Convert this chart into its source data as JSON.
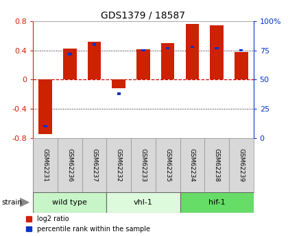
{
  "title": "GDS1379 / 18587",
  "samples": [
    "GSM62231",
    "GSM62236",
    "GSM62237",
    "GSM62232",
    "GSM62233",
    "GSM62235",
    "GSM62234",
    "GSM62238",
    "GSM62239"
  ],
  "log2_ratios": [
    -0.75,
    0.43,
    0.52,
    -0.12,
    0.42,
    0.5,
    0.76,
    0.74,
    0.38
  ],
  "percentile_ranks": [
    10,
    72,
    80,
    38,
    75,
    77,
    78,
    77,
    75
  ],
  "groups": [
    {
      "label": "wild type",
      "start": 0,
      "end": 3,
      "color": "#c8f5c8"
    },
    {
      "label": "vhl-1",
      "start": 3,
      "end": 6,
      "color": "#ddfadd"
    },
    {
      "label": "hif-1",
      "start": 6,
      "end": 9,
      "color": "#66dd66"
    }
  ],
  "ylim_left": [
    -0.8,
    0.8
  ],
  "ylim_right": [
    0,
    100
  ],
  "bar_color_red": "#cc2200",
  "bar_color_blue": "#0033cc",
  "zero_line_color": "#cc0000",
  "grid_color": "#000000",
  "bg_color": "#ffffff",
  "plot_bg": "#ffffff",
  "left_tick_color": "#cc2200",
  "right_tick_color": "#0033cc",
  "left_yticks": [
    -0.8,
    -0.4,
    0.0,
    0.4,
    0.8
  ],
  "right_yticks": [
    0,
    25,
    50,
    75,
    100
  ],
  "right_ytick_labels": [
    "0",
    "25",
    "50",
    "75",
    "100%"
  ],
  "legend_red_label": "log2 ratio",
  "legend_blue_label": "percentile rank within the sample",
  "strain_label": "strain",
  "red_bar_width": 0.55,
  "blue_bar_width": 0.15
}
